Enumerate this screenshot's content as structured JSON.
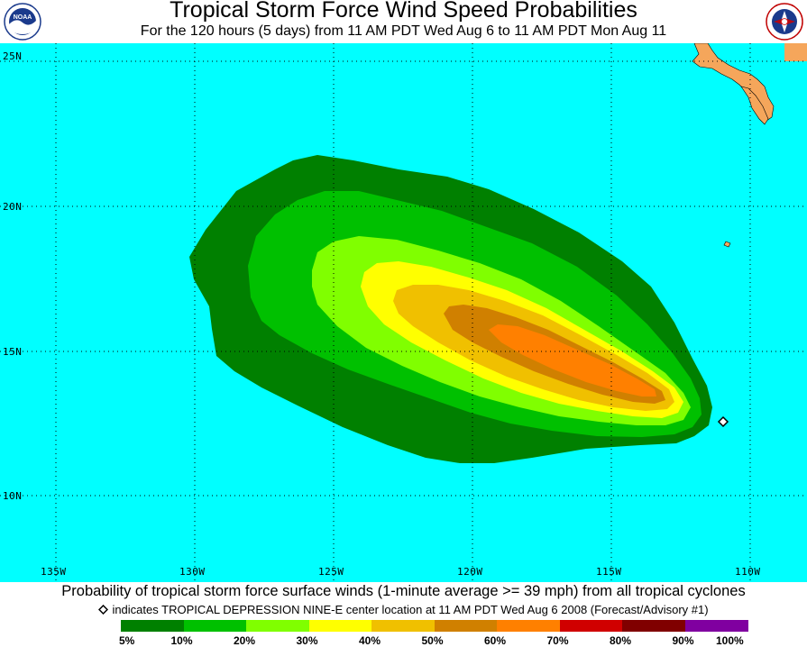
{
  "header": {
    "title": "Tropical Storm Force Wind Speed Probabilities",
    "subtitle": "For the 120 hours (5 days) from 11 AM PDT Wed Aug 6 to 11 AM PDT Mon Aug 11",
    "left_logo": "noaa-logo",
    "right_logo": "national-weather-service-logo"
  },
  "map": {
    "ocean_color": "#00ffff",
    "land_color": "#f5a65b",
    "lat_labels": [
      "25N",
      "20N",
      "15N",
      "10N"
    ],
    "lon_labels": [
      "135W",
      "130W",
      "125W",
      "120W",
      "115W",
      "110W"
    ],
    "storm_marker_icon": "diamond-marker-icon",
    "storm_marker_position": {
      "lat": 12.7,
      "lon": 110.7
    }
  },
  "footer": {
    "description": "Probability of tropical storm force surface winds (1-minute average >= 39 mph) from all tropical cyclones",
    "note_icon": "diamond-icon",
    "note": "indicates TROPICAL DEPRESSION NINE-E center location at 11 AM PDT Wed Aug 6 2008 (Forecast/Advisory #1)"
  },
  "legend": {
    "colors": [
      "#008000",
      "#00c000",
      "#80ff00",
      "#ffff00",
      "#f0c000",
      "#d08000",
      "#ff8000",
      "#d00000",
      "#800000",
      "#8000a0"
    ],
    "labels": [
      "5%",
      "10%",
      "20%",
      "30%",
      "40%",
      "50%",
      "60%",
      "70%",
      "80%",
      "90%",
      "100%"
    ]
  }
}
